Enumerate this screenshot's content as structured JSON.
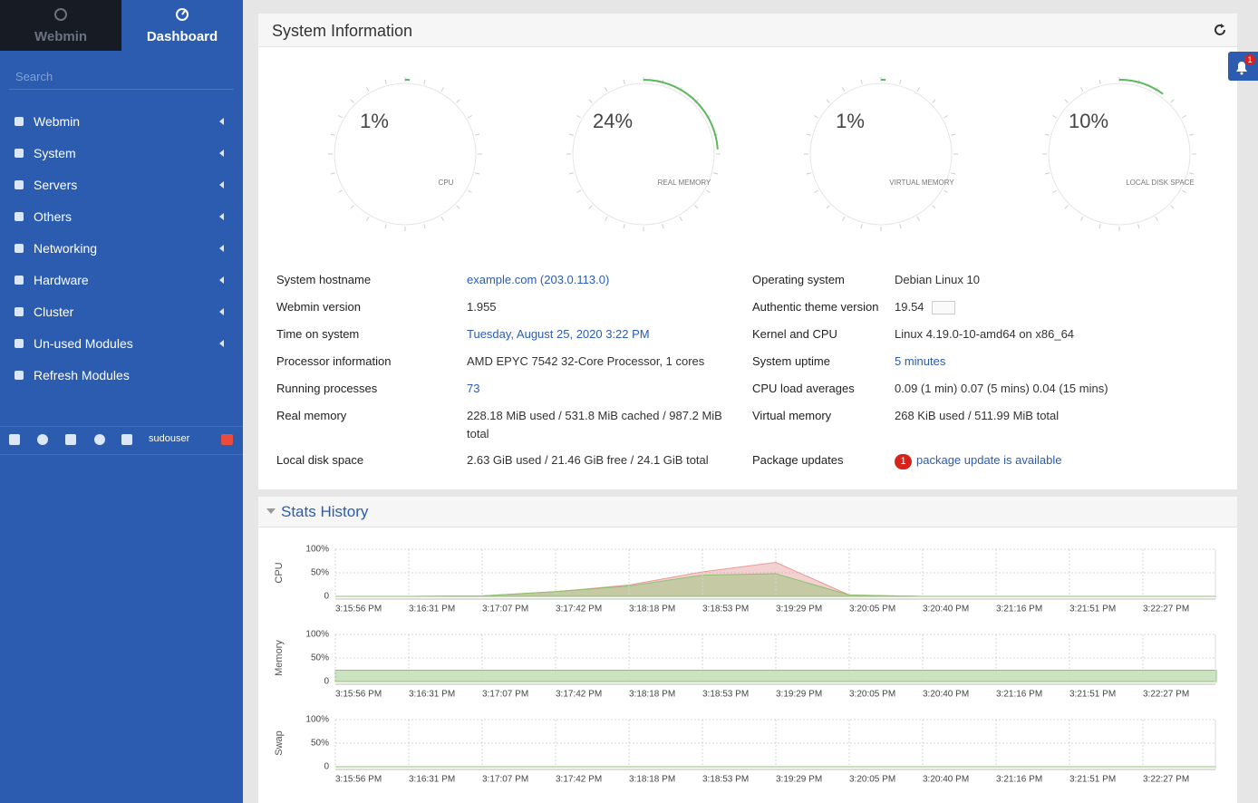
{
  "sidebar": {
    "tabs": [
      "Webmin",
      "Dashboard"
    ],
    "search_placeholder": "Search",
    "menu": [
      "Webmin",
      "System",
      "Servers",
      "Others",
      "Networking",
      "Hardware",
      "Cluster",
      "Un-used Modules",
      "Refresh Modules"
    ],
    "user": "sudouser"
  },
  "notification_count": "1",
  "system_information": {
    "title": "System Information",
    "gauges": [
      {
        "label": "CPU",
        "value": 1,
        "value_label": "1%"
      },
      {
        "label": "REAL MEMORY",
        "value": 24,
        "value_label": "24%"
      },
      {
        "label": "VIRTUAL MEMORY",
        "value": 1,
        "value_label": "1%"
      },
      {
        "label": "LOCAL DISK SPACE",
        "value": 10,
        "value_label": "10%"
      }
    ],
    "left": [
      {
        "label": "System hostname",
        "value": "example.com (203.0.113.0)"
      },
      {
        "label": "Webmin version",
        "value": "1.955"
      },
      {
        "label": "Time on system",
        "value": "Tuesday, August 25, 2020 3:22 PM"
      },
      {
        "label": "Processor information",
        "value": "AMD EPYC 7542 32-Core Processor, 1 cores"
      },
      {
        "label": "Running processes",
        "value": "73"
      },
      {
        "label": "Real memory",
        "value": "228.18 MiB used / 531.8 MiB cached / 987.2 MiB total"
      },
      {
        "label": "Local disk space",
        "value": "2.63 GiB used / 21.46 GiB free / 24.1 GiB total"
      }
    ],
    "right": [
      {
        "label": "Operating system",
        "value": "Debian Linux 10"
      },
      {
        "label": "Authentic theme version",
        "value": "19.54"
      },
      {
        "label": "Kernel and CPU",
        "value": "Linux 4.19.0-10-amd64 on x86_64"
      },
      {
        "label": "System uptime",
        "value": "5 minutes"
      },
      {
        "label": "CPU load averages",
        "value": "0.09 (1 min) 0.07 (5 mins) 0.04 (15 mins)"
      },
      {
        "label": "Virtual memory",
        "value": "268 KiB used / 511.99 MiB total"
      },
      {
        "label": "Package updates",
        "badge": "1",
        "value": "package update is available"
      }
    ]
  },
  "stats_history": {
    "title": "Stats History",
    "charts": [
      {
        "type": "area",
        "ylabel": "CPU",
        "ylim": [
          0,
          100
        ],
        "yticks": [
          {
            "value": 100,
            "label": "100%"
          },
          {
            "value": 50,
            "label": "50%"
          },
          0
        ],
        "categories": [
          "3:15:56 PM",
          "3:16:31 PM",
          "3:17:07 PM",
          "3:17:42 PM",
          "3:18:18 PM",
          "3:18:53 PM",
          "3:19:29 PM",
          "3:20:05 PM",
          "3:20:40 PM",
          "3:21:16 PM",
          "3:21:51 PM",
          "3:22:27 PM",
          null
        ],
        "series": [
          {
            "color": "#e79a9a",
            "values": [
              0,
              0,
              1,
              10,
              24,
              52,
              72,
              3,
              0,
              0,
              0,
              0,
              0
            ]
          },
          {
            "color": "#8cc26f",
            "values": [
              0,
              0,
              1,
              10,
              22,
              45,
              48,
              3,
              0,
              0,
              0,
              0,
              0
            ]
          }
        ]
      },
      {
        "type": "area",
        "ylabel": "Memory",
        "ylim": [
          0,
          100
        ],
        "yticks": [
          {
            "value": 100,
            "label": "100%"
          },
          {
            "value": 50,
            "label": "50%"
          },
          0
        ],
        "categories": [
          "3:15:56 PM",
          "3:16:31 PM",
          "3:17:07 PM",
          "3:17:42 PM",
          "3:18:18 PM",
          "3:18:53 PM",
          "3:19:29 PM",
          "3:20:05 PM",
          "3:20:40 PM",
          "3:21:16 PM",
          "3:21:51 PM",
          "3:22:27 PM",
          null
        ],
        "series": [
          {
            "color": "#8cc26f",
            "values": [
              24,
              24,
              24,
              24,
              24,
              24,
              24,
              24,
              24,
              24,
              24,
              24,
              24
            ]
          }
        ]
      },
      {
        "type": "area",
        "ylabel": "Swap",
        "ylim": [
          0,
          100
        ],
        "yticks": [
          {
            "value": 100,
            "label": "100%"
          },
          {
            "value": 50,
            "label": "50%"
          },
          0
        ],
        "categories": [
          "3:15:56 PM",
          "3:16:31 PM",
          "3:17:07 PM",
          "3:17:42 PM",
          "3:18:18 PM",
          "3:18:53 PM",
          "3:19:29 PM",
          "3:20:05 PM",
          "3:20:40 PM",
          "3:21:16 PM",
          "3:21:51 PM",
          "3:22:27 PM",
          null
        ],
        "series": [
          {
            "color": "#8cc26f",
            "values": [
              0,
              0,
              0,
              0,
              0,
              0,
              0,
              0,
              0,
              0,
              0,
              0,
              0
            ]
          }
        ]
      }
    ]
  }
}
